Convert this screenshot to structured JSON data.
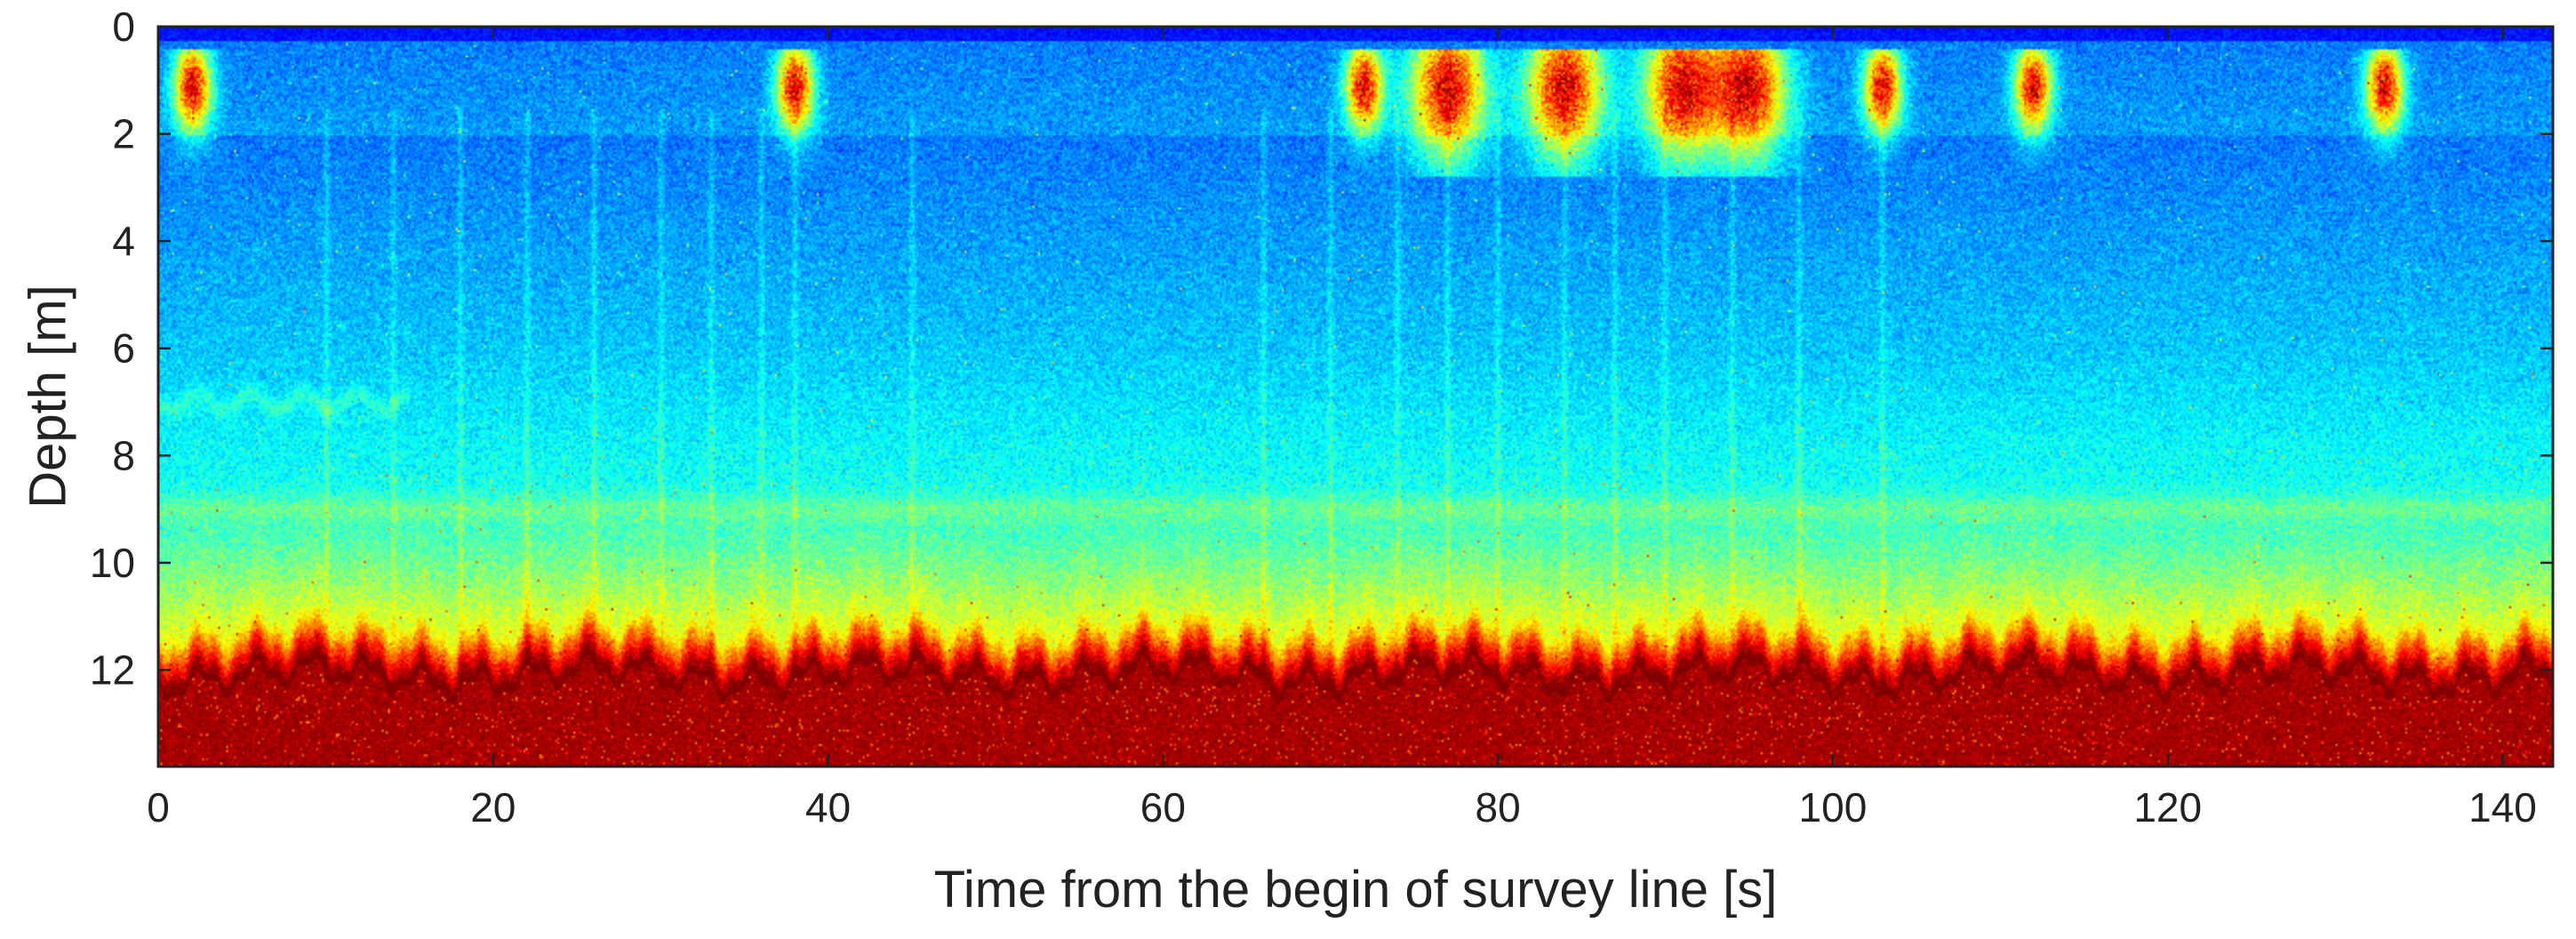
{
  "chart_data": {
    "type": "heatmap",
    "title": "",
    "xlabel": "Time from the begin of survey line [s]",
    "ylabel": "Depth [m]",
    "xlim": [
      0,
      143
    ],
    "ylim": [
      13.8,
      0
    ],
    "y_inverted": true,
    "x_ticks": [
      0,
      20,
      40,
      60,
      80,
      100,
      120,
      140
    ],
    "x_tick_labels": [
      "0",
      "20",
      "40",
      "60",
      "80",
      "100",
      "120",
      "140"
    ],
    "y_ticks": [
      0,
      2,
      4,
      6,
      8,
      10,
      12
    ],
    "y_tick_labels": [
      "0",
      "2",
      "4",
      "6",
      "8",
      "10",
      "12"
    ],
    "colormap": "jet",
    "colormap_stops": [
      "#00008f",
      "#0000ff",
      "#0080ff",
      "#00ffff",
      "#80ff80",
      "#ffff00",
      "#ff8000",
      "#ff0000",
      "#800000"
    ],
    "grid": false,
    "legend": "none",
    "features": {
      "surface_band_depth": [
        0,
        2.5
      ],
      "surface_hotspots_time": [
        2,
        38,
        72,
        77,
        84,
        91,
        95,
        103,
        112,
        133
      ],
      "surface_hotspot_extent_depth": [
        0.5,
        2.5
      ],
      "mid_gradient_depth": [
        8,
        11
      ],
      "faint_layer_depth": 9,
      "seabed_depth_mean": 12.2,
      "seabed_depth_range": [
        11.5,
        12.6
      ],
      "below_seabed_state": "saturated",
      "vertical_streak_times": [
        10,
        14,
        18,
        22,
        26,
        30,
        33,
        36,
        38,
        45,
        66,
        70,
        74,
        77,
        80,
        84,
        87,
        90,
        94,
        98,
        103
      ]
    }
  }
}
